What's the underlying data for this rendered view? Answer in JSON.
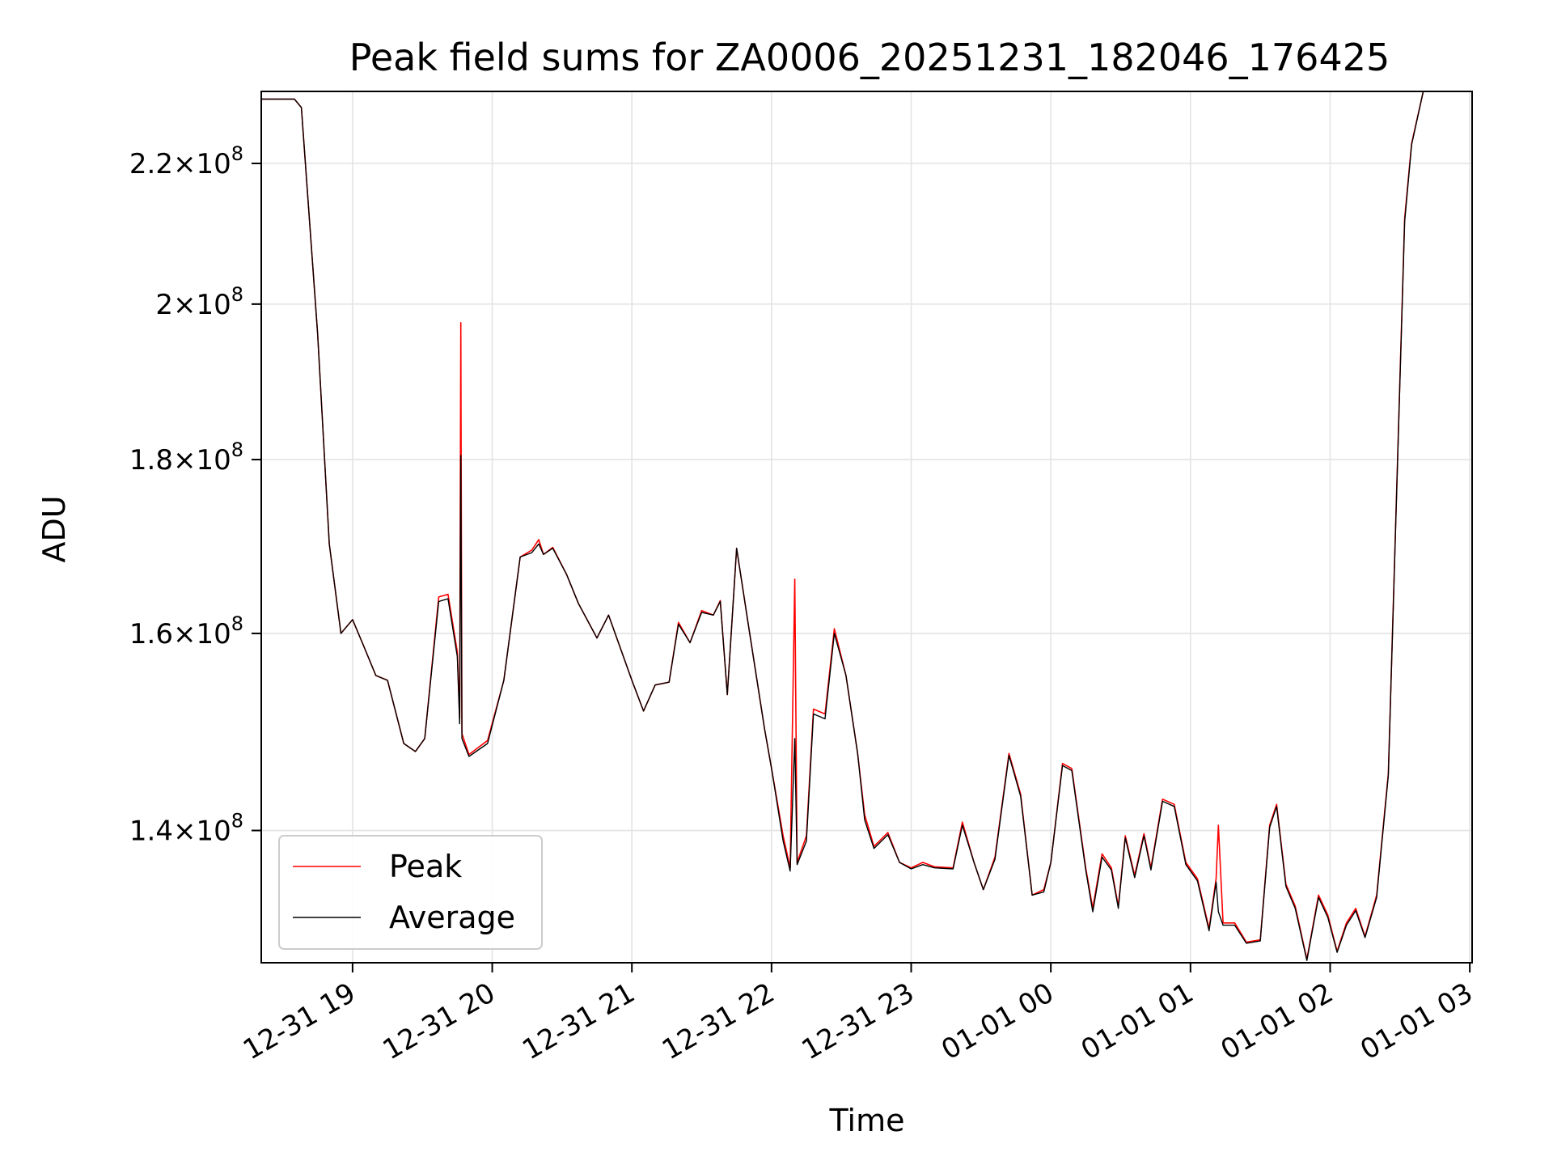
{
  "chart_data": {
    "type": "line",
    "title": "Peak field sums for ZA0006_20251231_182046_176425",
    "xlabel": "Time",
    "ylabel": "ADU",
    "scale": "log",
    "xlim": [
      "2025-12-31 18:20:46",
      "2026-01-01 03:01:00"
    ],
    "ylim": [
      128000000,
      231000000
    ],
    "grid": true,
    "legend_position": "lower-left",
    "x_ticks": [
      "12-31 19",
      "12-31 20",
      "12-31 21",
      "12-31 22",
      "12-31 23",
      "01-01 00",
      "01-01 01",
      "01-01 02",
      "01-01 03"
    ],
    "y_ticks": [
      {
        "value": 140000000,
        "mantissa": "1.4",
        "exponent": "8"
      },
      {
        "value": 160000000,
        "mantissa": "1.6",
        "exponent": "8"
      },
      {
        "value": 180000000,
        "mantissa": "1.8",
        "exponent": "8"
      },
      {
        "value": 200000000,
        "mantissa": "2",
        "exponent": "8"
      },
      {
        "value": 220000000,
        "mantissa": "2.2",
        "exponent": "8"
      }
    ],
    "y_tick_base": "10",
    "y_tick_times": "×",
    "series": [
      {
        "name": "Peak",
        "color": "#ff0000",
        "points": [
          [
            "2025-12-31 18:20:46",
            229800000
          ],
          [
            "2025-12-31 18:35:00",
            229800000
          ],
          [
            "2025-12-31 18:38:00",
            228500000
          ],
          [
            "2025-12-31 18:45:00",
            196000000
          ],
          [
            "2025-12-31 18:50:00",
            170000000
          ],
          [
            "2025-12-31 18:55:00",
            160000000
          ],
          [
            "2025-12-31 19:00:00",
            161500000
          ],
          [
            "2025-12-31 19:05:00",
            158500000
          ],
          [
            "2025-12-31 19:10:00",
            155500000
          ],
          [
            "2025-12-31 19:15:00",
            155000000
          ],
          [
            "2025-12-31 19:22:00",
            148500000
          ],
          [
            "2025-12-31 19:27:00",
            147700000
          ],
          [
            "2025-12-31 19:31:00",
            149000000
          ],
          [
            "2025-12-31 19:37:00",
            164000000
          ],
          [
            "2025-12-31 19:41:00",
            164300000
          ],
          [
            "2025-12-31 19:45:00",
            158000000
          ],
          [
            "2025-12-31 19:46:00",
            151000000
          ],
          [
            "2025-12-31 19:46:30",
            197500000
          ],
          [
            "2025-12-31 19:47:00",
            149500000
          ],
          [
            "2025-12-31 19:50:00",
            147400000
          ],
          [
            "2025-12-31 19:58:00",
            148800000
          ],
          [
            "2025-12-31 20:05:00",
            155000000
          ],
          [
            "2025-12-31 20:12:00",
            168500000
          ],
          [
            "2025-12-31 20:17:00",
            169300000
          ],
          [
            "2025-12-31 20:20:00",
            170500000
          ],
          [
            "2025-12-31 20:22:00",
            168800000
          ],
          [
            "2025-12-31 20:26:00",
            169600000
          ],
          [
            "2025-12-31 20:32:00",
            166500000
          ],
          [
            "2025-12-31 20:37:00",
            163300000
          ],
          [
            "2025-12-31 20:45:00",
            159500000
          ],
          [
            "2025-12-31 20:50:00",
            162000000
          ],
          [
            "2025-12-31 21:00:00",
            155000000
          ],
          [
            "2025-12-31 21:05:00",
            151800000
          ],
          [
            "2025-12-31 21:10:00",
            154500000
          ],
          [
            "2025-12-31 21:16:00",
            154800000
          ],
          [
            "2025-12-31 21:20:00",
            161200000
          ],
          [
            "2025-12-31 21:25:00",
            159000000
          ],
          [
            "2025-12-31 21:30:00",
            162500000
          ],
          [
            "2025-12-31 21:35:00",
            162000000
          ],
          [
            "2025-12-31 21:38:00",
            163600000
          ],
          [
            "2025-12-31 21:41:00",
            153500000
          ],
          [
            "2025-12-31 21:45:00",
            169500000
          ],
          [
            "2025-12-31 21:50:00",
            161000000
          ],
          [
            "2025-12-31 21:57:00",
            150000000
          ],
          [
            "2025-12-31 22:00:00",
            146000000
          ],
          [
            "2025-12-31 22:05:00",
            139500000
          ],
          [
            "2025-12-31 22:08:00",
            136500000
          ],
          [
            "2025-12-31 22:10:00",
            166000000
          ],
          [
            "2025-12-31 22:11:00",
            137000000
          ],
          [
            "2025-12-31 22:15:00",
            139500000
          ],
          [
            "2025-12-31 22:18:00",
            152000000
          ],
          [
            "2025-12-31 22:23:00",
            151500000
          ],
          [
            "2025-12-31 22:27:00",
            160500000
          ],
          [
            "2025-12-31 22:32:00",
            155500000
          ],
          [
            "2025-12-31 22:37:00",
            147500000
          ],
          [
            "2025-12-31 22:40:00",
            141500000
          ],
          [
            "2025-12-31 22:44:00",
            138500000
          ],
          [
            "2025-12-31 22:50:00",
            139800000
          ],
          [
            "2025-12-31 22:55:00",
            137000000
          ],
          [
            "2025-12-31 23:00:00",
            136500000
          ],
          [
            "2025-12-31 23:05:00",
            137000000
          ],
          [
            "2025-12-31 23:10:00",
            136600000
          ],
          [
            "2025-12-31 23:18:00",
            136500000
          ],
          [
            "2025-12-31 23:22:00",
            140800000
          ],
          [
            "2025-12-31 23:27:00",
            137000000
          ],
          [
            "2025-12-31 23:31:00",
            134500000
          ],
          [
            "2025-12-31 23:36:00",
            137500000
          ],
          [
            "2025-12-31 23:42:00",
            147500000
          ],
          [
            "2025-12-31 23:47:00",
            143500000
          ],
          [
            "2025-12-31 23:52:00",
            134000000
          ],
          [
            "2025-12-31 23:57:00",
            134500000
          ],
          [
            "2026-01-01 00:00:00",
            137000000
          ],
          [
            "2026-01-01 00:05:00",
            146500000
          ],
          [
            "2026-01-01 00:09:00",
            146000000
          ],
          [
            "2026-01-01 00:15:00",
            136500000
          ],
          [
            "2026-01-01 00:18:00",
            132800000
          ],
          [
            "2026-01-01 00:22:00",
            137800000
          ],
          [
            "2026-01-01 00:26:00",
            136500000
          ],
          [
            "2026-01-01 00:29:00",
            133000000
          ],
          [
            "2026-01-01 00:32:00",
            139500000
          ],
          [
            "2026-01-01 00:36:00",
            135800000
          ],
          [
            "2026-01-01 00:40:00",
            139700000
          ],
          [
            "2026-01-01 00:43:00",
            136500000
          ],
          [
            "2026-01-01 00:48:00",
            143000000
          ],
          [
            "2026-01-01 00:53:00",
            142500000
          ],
          [
            "2026-01-01 00:58:00",
            137000000
          ],
          [
            "2026-01-01 01:03:00",
            135500000
          ],
          [
            "2026-01-01 01:08:00",
            131000000
          ],
          [
            "2026-01-01 01:11:00",
            135500000
          ],
          [
            "2026-01-01 01:12:00",
            140500000
          ],
          [
            "2026-01-01 01:14:00",
            131500000
          ],
          [
            "2026-01-01 01:19:00",
            131500000
          ],
          [
            "2026-01-01 01:24:00",
            129800000
          ],
          [
            "2026-01-01 01:30:00",
            130000000
          ],
          [
            "2026-01-01 01:34:00",
            140500000
          ],
          [
            "2026-01-01 01:37:00",
            142500000
          ],
          [
            "2026-01-01 01:41:00",
            135000000
          ],
          [
            "2026-01-01 01:45:00",
            133000000
          ],
          [
            "2026-01-01 01:50:00",
            128300000
          ],
          [
            "2026-01-01 01:55:00",
            134000000
          ],
          [
            "2026-01-01 01:59:00",
            132200000
          ],
          [
            "2026-01-01 02:03:00",
            129000000
          ],
          [
            "2026-01-01 02:07:00",
            131500000
          ],
          [
            "2026-01-01 02:11:00",
            132800000
          ],
          [
            "2026-01-01 02:15:00",
            130300000
          ],
          [
            "2026-01-01 02:20:00",
            134000000
          ],
          [
            "2026-01-01 02:25:00",
            145500000
          ],
          [
            "2026-01-01 02:32:00",
            212000000
          ],
          [
            "2026-01-01 02:35:00",
            223000000
          ],
          [
            "2026-01-01 02:40:00",
            231000000
          ]
        ]
      },
      {
        "name": "Average",
        "color": "#000000",
        "points": [
          [
            "2025-12-31 18:20:46",
            229800000
          ],
          [
            "2025-12-31 18:35:00",
            229800000
          ],
          [
            "2025-12-31 18:38:00",
            228500000
          ],
          [
            "2025-12-31 18:45:00",
            196000000
          ],
          [
            "2025-12-31 18:50:00",
            170000000
          ],
          [
            "2025-12-31 18:55:00",
            160000000
          ],
          [
            "2025-12-31 19:00:00",
            161500000
          ],
          [
            "2025-12-31 19:05:00",
            158500000
          ],
          [
            "2025-12-31 19:10:00",
            155500000
          ],
          [
            "2025-12-31 19:15:00",
            155000000
          ],
          [
            "2025-12-31 19:22:00",
            148500000
          ],
          [
            "2025-12-31 19:27:00",
            147700000
          ],
          [
            "2025-12-31 19:31:00",
            149000000
          ],
          [
            "2025-12-31 19:37:00",
            163500000
          ],
          [
            "2025-12-31 19:41:00",
            163800000
          ],
          [
            "2025-12-31 19:45:00",
            157500000
          ],
          [
            "2025-12-31 19:46:00",
            150500000
          ],
          [
            "2025-12-31 19:46:30",
            180500000
          ],
          [
            "2025-12-31 19:47:00",
            149000000
          ],
          [
            "2025-12-31 19:50:00",
            147200000
          ],
          [
            "2025-12-31 19:58:00",
            148500000
          ],
          [
            "2025-12-31 20:05:00",
            155000000
          ],
          [
            "2025-12-31 20:12:00",
            168500000
          ],
          [
            "2025-12-31 20:17:00",
            169000000
          ],
          [
            "2025-12-31 20:20:00",
            170000000
          ],
          [
            "2025-12-31 20:22:00",
            168800000
          ],
          [
            "2025-12-31 20:26:00",
            169500000
          ],
          [
            "2025-12-31 20:32:00",
            166500000
          ],
          [
            "2025-12-31 20:37:00",
            163300000
          ],
          [
            "2025-12-31 20:45:00",
            159500000
          ],
          [
            "2025-12-31 20:50:00",
            162000000
          ],
          [
            "2025-12-31 21:00:00",
            155000000
          ],
          [
            "2025-12-31 21:05:00",
            151800000
          ],
          [
            "2025-12-31 21:10:00",
            154500000
          ],
          [
            "2025-12-31 21:16:00",
            154800000
          ],
          [
            "2025-12-31 21:20:00",
            161000000
          ],
          [
            "2025-12-31 21:25:00",
            159000000
          ],
          [
            "2025-12-31 21:30:00",
            162300000
          ],
          [
            "2025-12-31 21:35:00",
            162000000
          ],
          [
            "2025-12-31 21:38:00",
            163500000
          ],
          [
            "2025-12-31 21:41:00",
            153500000
          ],
          [
            "2025-12-31 21:45:00",
            169500000
          ],
          [
            "2025-12-31 21:50:00",
            161000000
          ],
          [
            "2025-12-31 21:57:00",
            150000000
          ],
          [
            "2025-12-31 22:00:00",
            146000000
          ],
          [
            "2025-12-31 22:05:00",
            139000000
          ],
          [
            "2025-12-31 22:08:00",
            136200000
          ],
          [
            "2025-12-31 22:10:00",
            149000000
          ],
          [
            "2025-12-31 22:11:00",
            136800000
          ],
          [
            "2025-12-31 22:15:00",
            139000000
          ],
          [
            "2025-12-31 22:18:00",
            151500000
          ],
          [
            "2025-12-31 22:23:00",
            151000000
          ],
          [
            "2025-12-31 22:27:00",
            160000000
          ],
          [
            "2025-12-31 22:32:00",
            155500000
          ],
          [
            "2025-12-31 22:37:00",
            147500000
          ],
          [
            "2025-12-31 22:40:00",
            141000000
          ],
          [
            "2025-12-31 22:44:00",
            138300000
          ],
          [
            "2025-12-31 22:50:00",
            139600000
          ],
          [
            "2025-12-31 22:55:00",
            137000000
          ],
          [
            "2025-12-31 23:00:00",
            136400000
          ],
          [
            "2025-12-31 23:05:00",
            136800000
          ],
          [
            "2025-12-31 23:10:00",
            136500000
          ],
          [
            "2025-12-31 23:18:00",
            136400000
          ],
          [
            "2025-12-31 23:22:00",
            140500000
          ],
          [
            "2025-12-31 23:27:00",
            137000000
          ],
          [
            "2025-12-31 23:31:00",
            134500000
          ],
          [
            "2025-12-31 23:36:00",
            137300000
          ],
          [
            "2025-12-31 23:42:00",
            147300000
          ],
          [
            "2025-12-31 23:47:00",
            143300000
          ],
          [
            "2025-12-31 23:52:00",
            134000000
          ],
          [
            "2025-12-31 23:57:00",
            134300000
          ],
          [
            "2026-01-01 00:00:00",
            137000000
          ],
          [
            "2026-01-01 00:05:00",
            146300000
          ],
          [
            "2026-01-01 00:09:00",
            145800000
          ],
          [
            "2026-01-01 00:15:00",
            136300000
          ],
          [
            "2026-01-01 00:18:00",
            132500000
          ],
          [
            "2026-01-01 00:22:00",
            137500000
          ],
          [
            "2026-01-01 00:26:00",
            136300000
          ],
          [
            "2026-01-01 00:29:00",
            132800000
          ],
          [
            "2026-01-01 00:32:00",
            139300000
          ],
          [
            "2026-01-01 00:36:00",
            135600000
          ],
          [
            "2026-01-01 00:40:00",
            139500000
          ],
          [
            "2026-01-01 00:43:00",
            136300000
          ],
          [
            "2026-01-01 00:48:00",
            142800000
          ],
          [
            "2026-01-01 00:53:00",
            142300000
          ],
          [
            "2026-01-01 00:58:00",
            136800000
          ],
          [
            "2026-01-01 01:03:00",
            135300000
          ],
          [
            "2026-01-01 01:08:00",
            130800000
          ],
          [
            "2026-01-01 01:11:00",
            135200000
          ],
          [
            "2026-01-01 01:12:00",
            132500000
          ],
          [
            "2026-01-01 01:14:00",
            131300000
          ],
          [
            "2026-01-01 01:19:00",
            131300000
          ],
          [
            "2026-01-01 01:24:00",
            129700000
          ],
          [
            "2026-01-01 01:30:00",
            129900000
          ],
          [
            "2026-01-01 01:34:00",
            140300000
          ],
          [
            "2026-01-01 01:37:00",
            142300000
          ],
          [
            "2026-01-01 01:41:00",
            134800000
          ],
          [
            "2026-01-01 01:45:00",
            132800000
          ],
          [
            "2026-01-01 01:50:00",
            128200000
          ],
          [
            "2026-01-01 01:55:00",
            133800000
          ],
          [
            "2026-01-01 01:59:00",
            132000000
          ],
          [
            "2026-01-01 02:03:00",
            128900000
          ],
          [
            "2026-01-01 02:07:00",
            131300000
          ],
          [
            "2026-01-01 02:11:00",
            132600000
          ],
          [
            "2026-01-01 02:15:00",
            130200000
          ],
          [
            "2026-01-01 02:20:00",
            133800000
          ],
          [
            "2026-01-01 02:25:00",
            145300000
          ],
          [
            "2026-01-01 02:32:00",
            211500000
          ],
          [
            "2026-01-01 02:35:00",
            222800000
          ],
          [
            "2026-01-01 02:40:00",
            231000000
          ]
        ]
      }
    ]
  }
}
